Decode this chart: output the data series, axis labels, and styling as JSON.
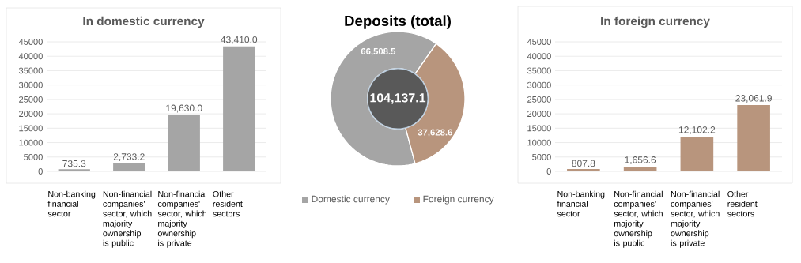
{
  "chart_data": [
    {
      "type": "bar",
      "title": "In domestic currency",
      "categories": [
        "Non-banking financial sector",
        "Non-financial companies' sector, which majority ownership is public",
        "Non-financial companies' sector, which majority ownership is private",
        "Other resident sectors"
      ],
      "values": [
        735.3,
        2733.2,
        19630.0,
        43410.0
      ],
      "value_labels": [
        "735.3",
        "2,733.2",
        "19,630.0",
        "43,410.0"
      ],
      "color": "#a5a5a5",
      "ylim": [
        0,
        45000
      ],
      "yticks": [
        0,
        5000,
        10000,
        15000,
        20000,
        25000,
        30000,
        35000,
        40000,
        45000
      ],
      "grid": "y"
    },
    {
      "type": "donut",
      "title": "Deposits (total)",
      "categories": [
        "Domestic currency",
        "Foreign currency"
      ],
      "values": [
        66508.5,
        37628.6
      ],
      "value_labels": [
        "66,508.5",
        "37,628.6"
      ],
      "colors": [
        "#a5a5a5",
        "#b8957d"
      ],
      "legend": "bottom",
      "annotations": [
        "104,137.1"
      ]
    },
    {
      "type": "bar",
      "title": "In foreign currency",
      "categories": [
        "Non-banking financial sector",
        "Non-financial companies' sector, which majority ownership is public",
        "Non-financial companies' sector, which majority ownership is private",
        "Other resident sectors"
      ],
      "values": [
        807.8,
        1656.6,
        12102.2,
        23061.9
      ],
      "value_labels": [
        "807.8",
        "1,656.6",
        "12,102.2",
        "23,061.9"
      ],
      "color": "#b8957d",
      "ylim": [
        0,
        45000
      ],
      "yticks": [
        0,
        5000,
        10000,
        15000,
        20000,
        25000,
        30000,
        35000,
        40000,
        45000
      ],
      "grid": "y"
    }
  ]
}
